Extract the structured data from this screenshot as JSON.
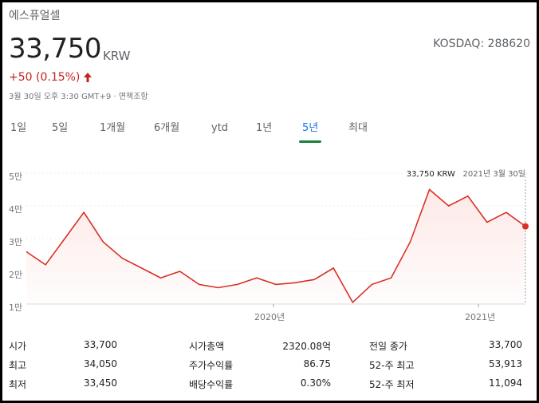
{
  "header": {
    "company": "에스퓨얼셀",
    "price": "33,750",
    "currency": "KRW",
    "exchange": "KOSDAQ: 288620",
    "change": "+50 (0.15%)",
    "timestamp": "3월 30일 오후 3:30 GMT+9 · 면책조항"
  },
  "tabs": [
    {
      "label": "1일",
      "active": false
    },
    {
      "label": "5일",
      "active": false
    },
    {
      "label": "1개월",
      "active": false
    },
    {
      "label": "6개월",
      "active": false
    },
    {
      "label": "ytd",
      "active": false
    },
    {
      "label": "1년",
      "active": false
    },
    {
      "label": "5년",
      "active": true
    },
    {
      "label": "최대",
      "active": false
    }
  ],
  "chart": {
    "tooltip_price": "33,750 KRW",
    "tooltip_date": "2021년 3월 30일",
    "y_ticks": [
      "5만",
      "4만",
      "3만",
      "2만",
      "1만"
    ],
    "x_ticks": [
      "2020년",
      "2021년"
    ],
    "line_color": "#d93025",
    "fill_color": "#fce8e6"
  },
  "chart_data": {
    "type": "area",
    "title": "",
    "xlabel": "",
    "ylabel": "",
    "ylim": [
      10000,
      50000
    ],
    "x_range": [
      "2019-01-01",
      "2021-03-30"
    ],
    "x": [
      "2019-01",
      "2019-02",
      "2019-03",
      "2019-04",
      "2019-05",
      "2019-06",
      "2019-07",
      "2019-08",
      "2019-09",
      "2019-10",
      "2019-11",
      "2019-12",
      "2020-01",
      "2020-02",
      "2020-03",
      "2020-04",
      "2020-05",
      "2020-06",
      "2020-07",
      "2020-08",
      "2020-09",
      "2020-10",
      "2020-11",
      "2020-12",
      "2021-01",
      "2021-02",
      "2021-03"
    ],
    "values": [
      26000,
      22000,
      30000,
      38000,
      29000,
      24000,
      21000,
      18000,
      20000,
      16000,
      15000,
      16000,
      18000,
      16000,
      16500,
      17500,
      21000,
      10500,
      16000,
      18000,
      29000,
      45000,
      40000,
      43000,
      35000,
      38000,
      33750
    ]
  },
  "stats": [
    {
      "label": "시가",
      "value": "33,700"
    },
    {
      "label": "최고",
      "value": "34,050"
    },
    {
      "label": "최저",
      "value": "33,450"
    },
    {
      "label": "시가총액",
      "value": "2320.08억"
    },
    {
      "label": "주가수익률",
      "value": "86.75"
    },
    {
      "label": "배당수익률",
      "value": "0.30%"
    },
    {
      "label": "전일 종가",
      "value": "33,700"
    },
    {
      "label": "52-주 최고",
      "value": "53,913"
    },
    {
      "label": "52-주 최저",
      "value": "11,094"
    }
  ]
}
